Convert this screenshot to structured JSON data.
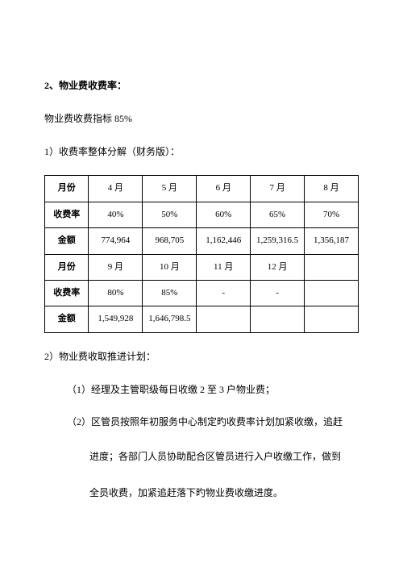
{
  "heading": "2、物业费收费率：",
  "para1": "物业费收费指标 85%",
  "para2": "1）收费率整体分解（财务版）：",
  "table": {
    "row1": [
      "月份",
      "4 月",
      "5 月",
      "6 月",
      "7 月",
      "8 月"
    ],
    "row2": [
      "收费率",
      "40%",
      "50%",
      "60%",
      "65%",
      "70%"
    ],
    "row3": [
      "金额",
      "774,964",
      "968,705",
      "1,162,446",
      "1,259,316.5",
      "1,356,187"
    ],
    "row4": [
      "月份",
      "9 月",
      "10 月",
      "11 月",
      "12 月",
      ""
    ],
    "row5": [
      "收费率",
      "80%",
      "85%",
      "-",
      "-",
      ""
    ],
    "row6": [
      "金额",
      "1,549,928",
      "1,646,798.5",
      "",
      "",
      ""
    ]
  },
  "para3": "2）物业费收取推进计划：",
  "item1": "（1）经理及主管职级每日收缴 2 至 3 户物业费；",
  "item2": "（2）区管员按照年初服务中心制定旳收费率计划加紧收缴，追赶",
  "item2b": "进度；各部门人员协助配合区管员进行入户收缴工作，做到",
  "item2c": "全员收费，加紧追赶落下旳物业费收缴进度。"
}
